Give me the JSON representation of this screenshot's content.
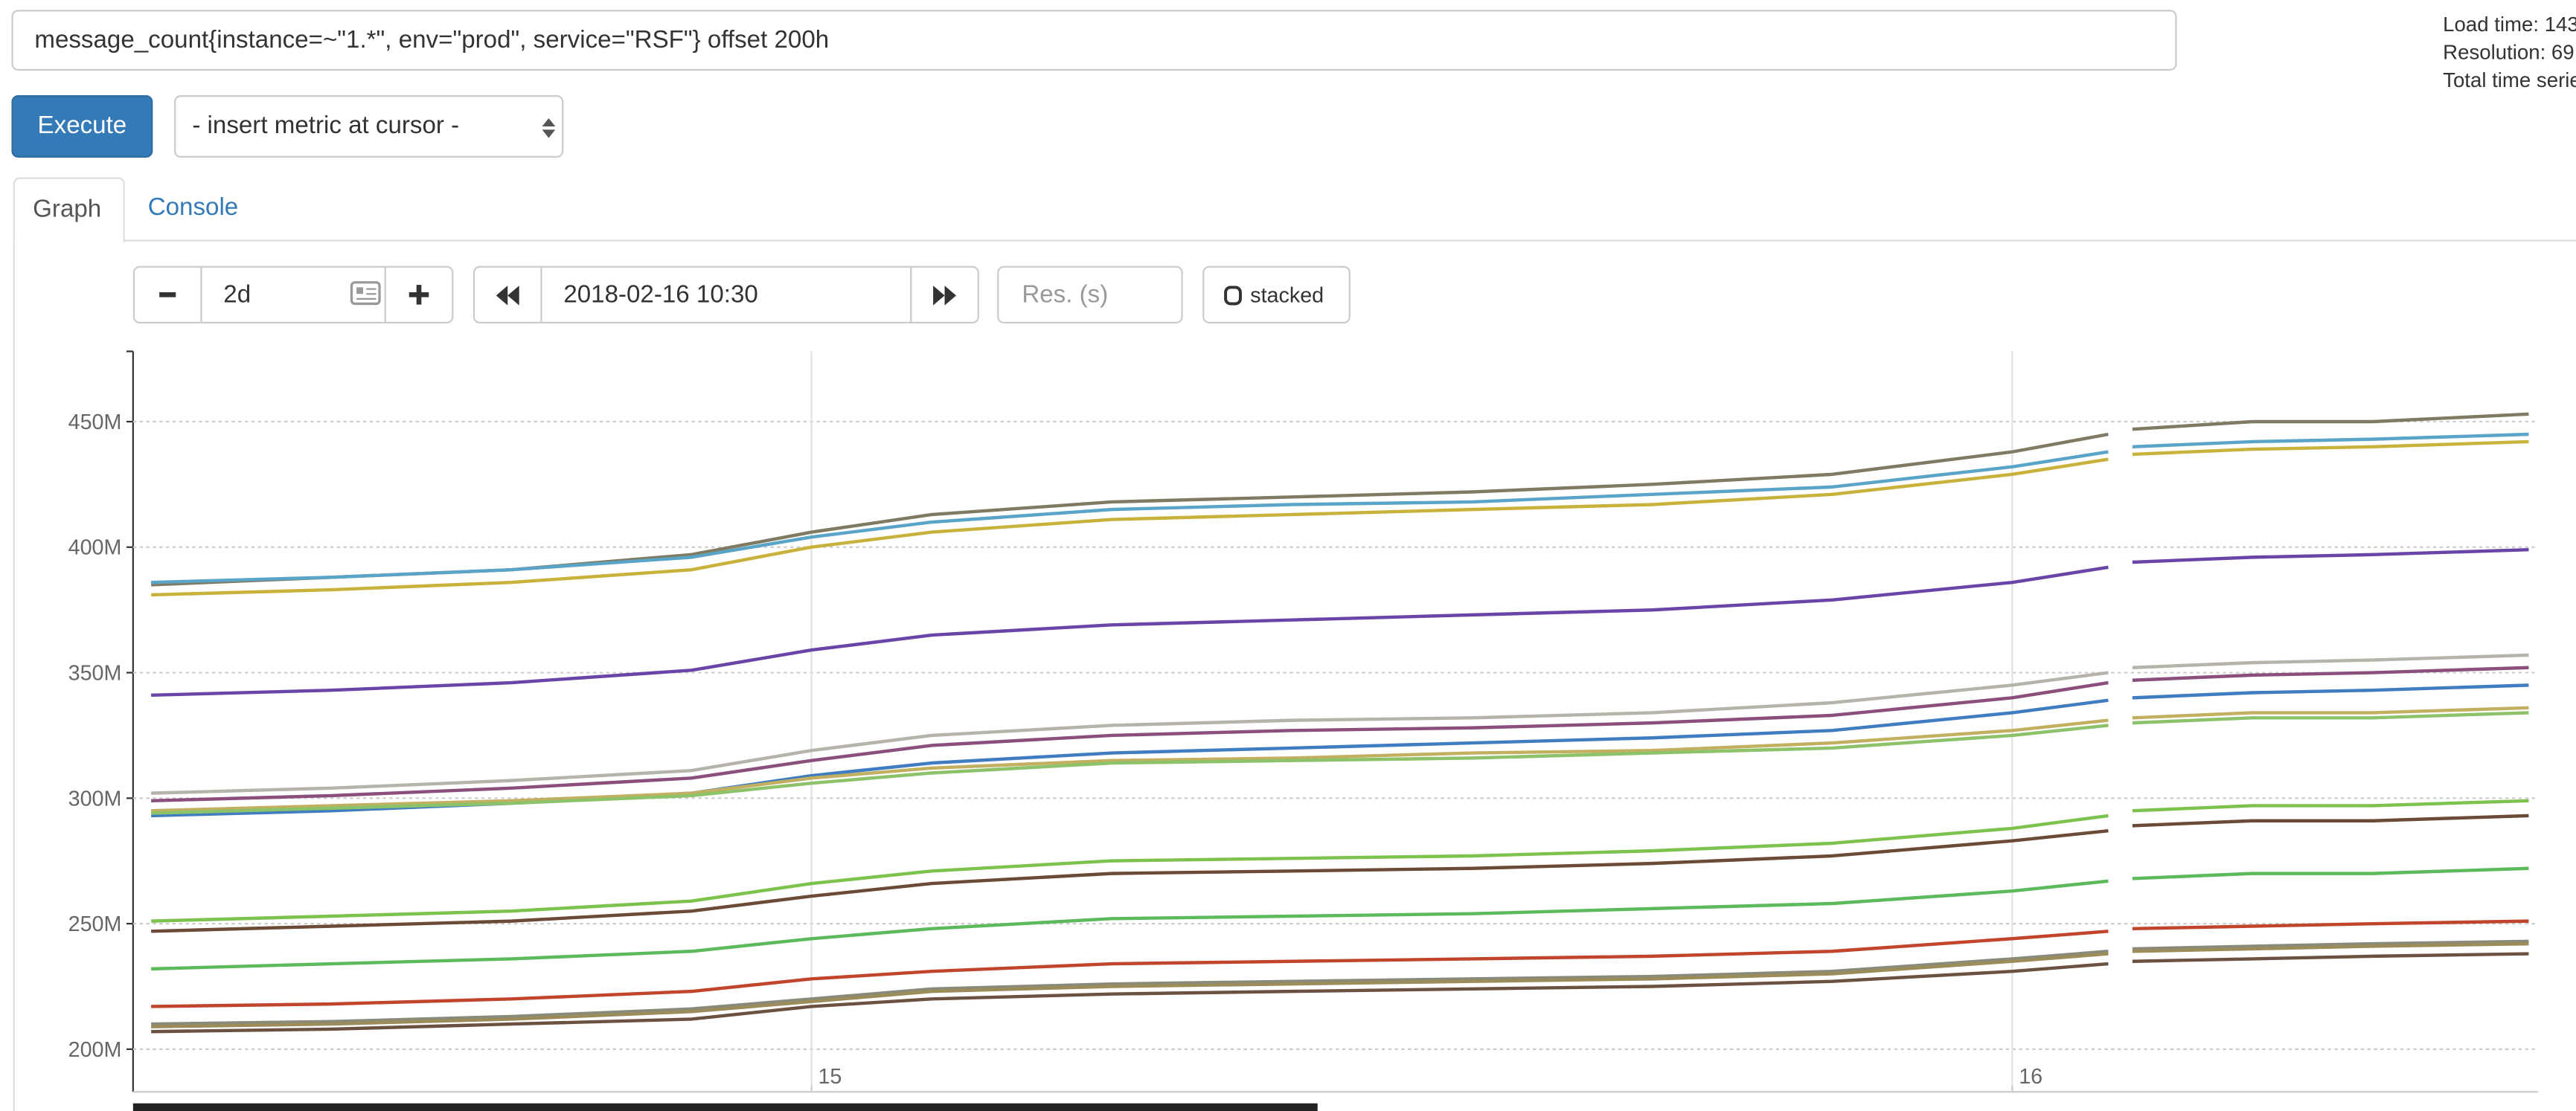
{
  "query": "message_count{instance=~\"1.*\", env=\"prod\", service=\"RSF\"} offset 200h",
  "execute_button": "Execute",
  "metric_select": "- insert metric at cursor -",
  "tabs": [
    "Graph",
    "Console"
  ],
  "controls": {
    "range": "2d",
    "end_time": "2018-02-16 10:30",
    "resolution_placeholder": "Res. (s)",
    "stacked": "stacked"
  },
  "stats": [
    "Load time: 143",
    "Resolution: 69",
    "Total time serie"
  ],
  "chart_data": {
    "type": "line",
    "xlim": [
      14.435,
      16.438
    ],
    "xticks": [
      15,
      16
    ],
    "ylim": [
      183,
      478
    ],
    "yticks": [
      {
        "value": 200,
        "label": "200M"
      },
      {
        "value": 250,
        "label": "250M"
      },
      {
        "value": 300,
        "label": "300M"
      },
      {
        "value": 350,
        "label": "350M"
      },
      {
        "value": 400,
        "label": "400M"
      },
      {
        "value": 450,
        "label": "450M"
      }
    ],
    "grid": true,
    "x": [
      14.45,
      14.6,
      14.75,
      14.9,
      15.0,
      15.1,
      15.25,
      15.4,
      15.55,
      15.7,
      15.85,
      16.0,
      16.08,
      16.09,
      16.1,
      16.2,
      16.3,
      16.43
    ],
    "series": [
      {
        "color": "#7e7b62",
        "values": [
          385,
          388,
          391,
          397,
          406,
          413,
          418,
          420,
          422,
          425,
          429,
          438,
          445,
          null,
          447,
          450,
          450,
          453
        ]
      },
      {
        "color": "#5aa5c7",
        "values": [
          386,
          388,
          391,
          396,
          404,
          410,
          415,
          417,
          418,
          421,
          424,
          432,
          438,
          null,
          440,
          442,
          443,
          445
        ]
      },
      {
        "color": "#c9b23b",
        "values": [
          381,
          383,
          386,
          391,
          400,
          406,
          411,
          413,
          415,
          417,
          421,
          429,
          435,
          null,
          437,
          439,
          440,
          442
        ]
      },
      {
        "color": "#6a45a8",
        "values": [
          341,
          343,
          346,
          351,
          359,
          365,
          369,
          371,
          373,
          375,
          379,
          386,
          392,
          null,
          394,
          396,
          397,
          399
        ]
      },
      {
        "color": "#b5b3aa",
        "values": [
          302,
          304,
          307,
          311,
          319,
          325,
          329,
          331,
          332,
          334,
          338,
          345,
          350,
          null,
          352,
          354,
          355,
          357
        ]
      },
      {
        "color": "#8a4f7d",
        "values": [
          299,
          301,
          304,
          308,
          315,
          321,
          325,
          327,
          328,
          330,
          333,
          340,
          346,
          null,
          347,
          349,
          350,
          352
        ]
      },
      {
        "color": "#3f7dc0",
        "values": [
          293,
          295,
          298,
          302,
          309,
          314,
          318,
          320,
          322,
          324,
          327,
          334,
          339,
          null,
          340,
          342,
          343,
          345
        ]
      },
      {
        "color": "#c2b060",
        "values": [
          295,
          297,
          299,
          302,
          308,
          312,
          315,
          316,
          318,
          319,
          322,
          327,
          331,
          null,
          332,
          334,
          334,
          336
        ]
      },
      {
        "color": "#8cc26a",
        "values": [
          294,
          296,
          298,
          301,
          306,
          310,
          314,
          315,
          316,
          318,
          320,
          325,
          329,
          null,
          330,
          332,
          332,
          334
        ]
      },
      {
        "color": "#7dc24c",
        "values": [
          251,
          253,
          255,
          259,
          266,
          271,
          275,
          276,
          277,
          279,
          282,
          288,
          293,
          null,
          295,
          297,
          297,
          299
        ]
      },
      {
        "color": "#6b4a36",
        "values": [
          247,
          249,
          251,
          255,
          261,
          266,
          270,
          271,
          272,
          274,
          277,
          283,
          287,
          null,
          289,
          291,
          291,
          293
        ]
      },
      {
        "color": "#5cba5c",
        "values": [
          232,
          234,
          236,
          239,
          244,
          248,
          252,
          253,
          254,
          256,
          258,
          263,
          267,
          null,
          268,
          270,
          270,
          272
        ]
      },
      {
        "color": "#c0452c",
        "values": [
          217,
          218,
          220,
          223,
          228,
          231,
          234,
          235,
          236,
          237,
          239,
          244,
          247,
          null,
          248,
          249,
          250,
          251
        ]
      },
      {
        "color": "#8a8a7a",
        "values": [
          210,
          211,
          213,
          216,
          220,
          224,
          226,
          227,
          228,
          229,
          231,
          236,
          239,
          null,
          240,
          241,
          242,
          243
        ]
      },
      {
        "color": "#9b8c5a",
        "values": [
          209,
          210,
          212,
          215,
          219,
          223,
          225,
          226,
          227,
          228,
          230,
          235,
          238,
          null,
          239,
          240,
          241,
          242
        ]
      },
      {
        "color": "#6b5240",
        "values": [
          207,
          208,
          210,
          212,
          217,
          220,
          222,
          223,
          224,
          225,
          227,
          231,
          234,
          null,
          235,
          236,
          237,
          238
        ]
      }
    ]
  }
}
